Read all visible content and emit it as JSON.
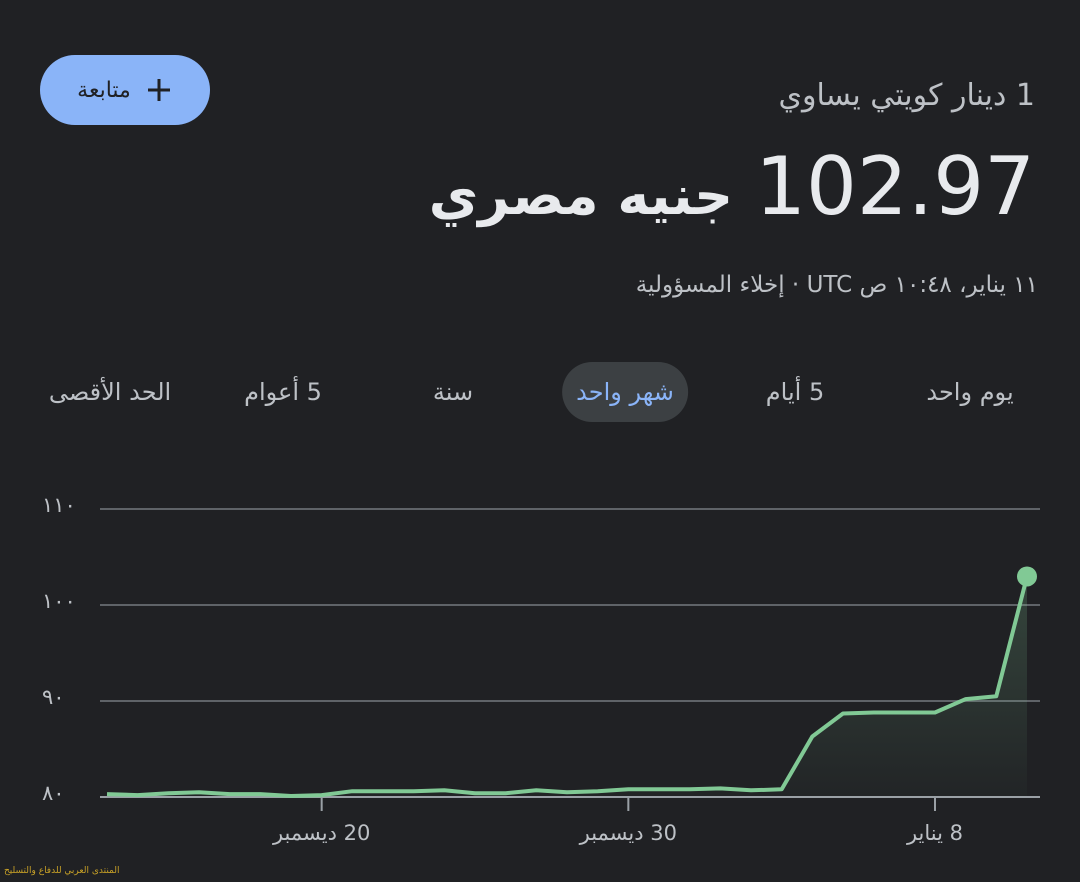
{
  "header": {
    "follow_button": "متابعة",
    "title": "1 دينار كويتي يساوي",
    "amount": "102.97",
    "currency": "جنيه مصري",
    "timestamp": "١١ يناير، ١٠:٤٨ ص UTC · إخلاء المسؤولية"
  },
  "tabs": {
    "items": [
      "يوم واحد",
      "5 أيام",
      "شهر واحد",
      "سنة",
      "5 أعوام",
      "الحد الأقصى"
    ],
    "selected": 2
  },
  "watermark": "المنتدى العربي للدفاع والتسليح",
  "chart_data": {
    "type": "line",
    "categories": [
      null,
      null,
      null,
      null,
      null,
      null,
      null,
      "20 ديسمبر",
      null,
      null,
      null,
      null,
      null,
      null,
      null,
      null,
      null,
      "30 ديسمبر",
      null,
      null,
      null,
      null,
      null,
      null,
      null,
      null,
      null,
      "8 يناير",
      null,
      null,
      null
    ],
    "series": [
      {
        "name": "KWD/EGP",
        "color": "#81c995",
        "values": [
          80.3,
          80.2,
          80.4,
          80.5,
          80.3,
          80.3,
          80.1,
          80.2,
          80.6,
          80.6,
          80.6,
          80.7,
          80.4,
          80.4,
          80.7,
          80.5,
          80.6,
          80.8,
          80.8,
          80.8,
          80.9,
          80.7,
          80.8,
          86.3,
          88.7,
          88.8,
          88.8,
          88.8,
          90.2,
          90.5,
          102.97
        ]
      }
    ],
    "ylim": [
      80,
      110
    ],
    "yticks": [
      {
        "value": 80,
        "label": "٨٠"
      },
      {
        "value": 90,
        "label": "٩٠"
      },
      {
        "value": 100,
        "label": "١٠٠"
      },
      {
        "value": 110,
        "label": "١١٠"
      }
    ],
    "grid": true
  }
}
